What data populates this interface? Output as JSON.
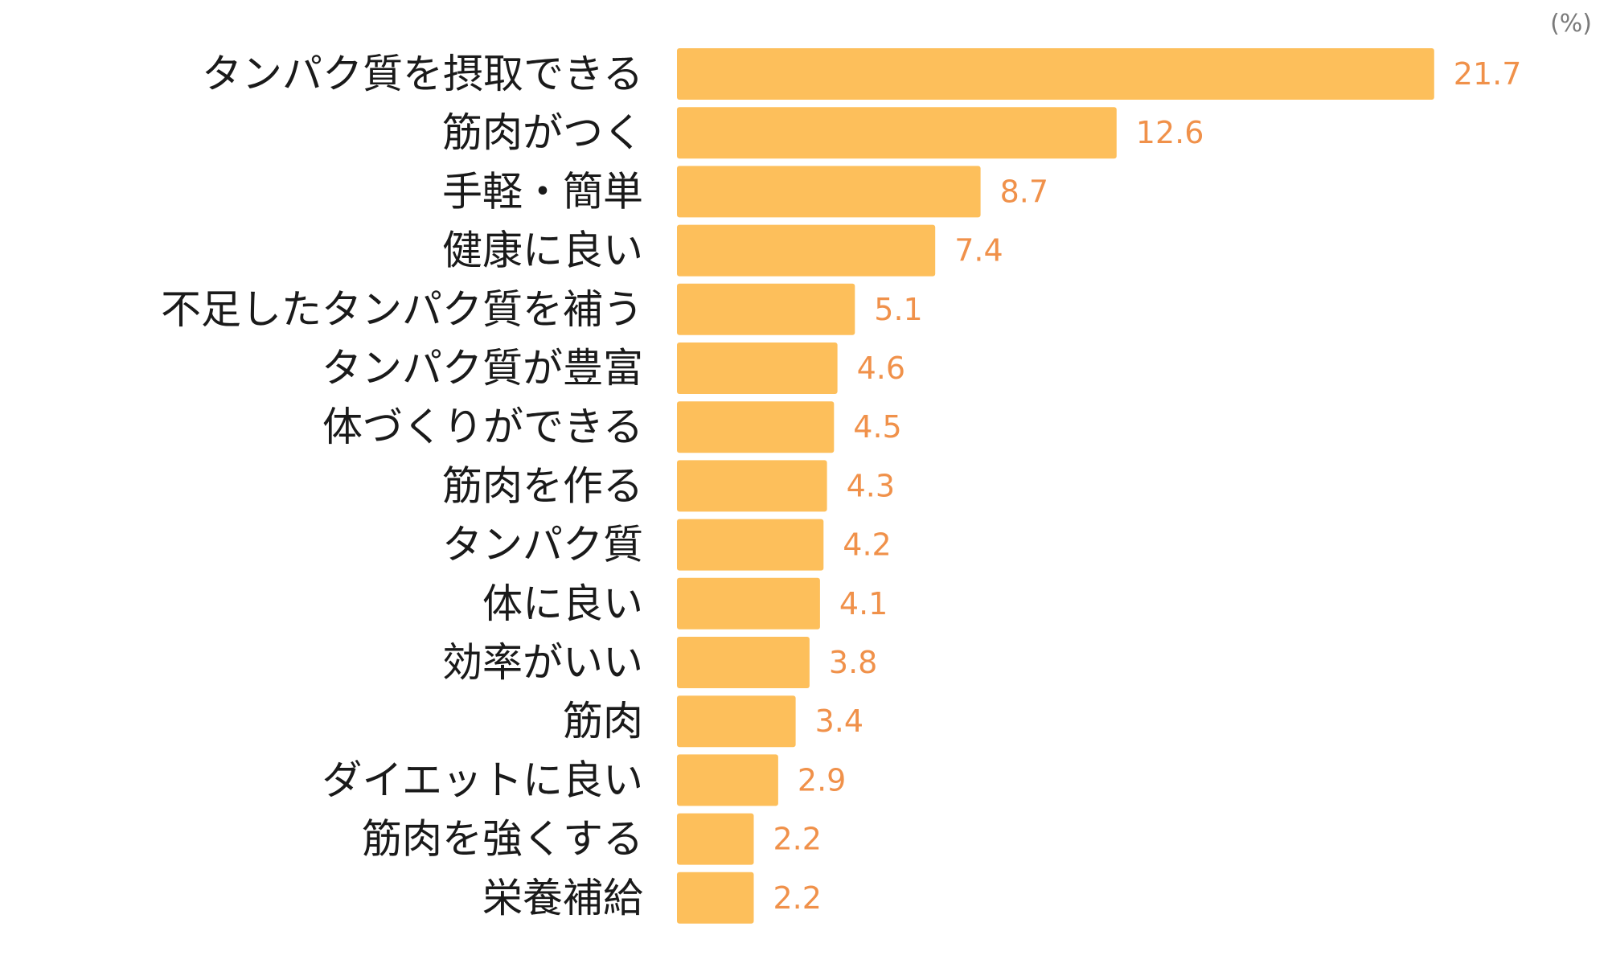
{
  "chart_data": {
    "type": "bar",
    "orientation": "horizontal",
    "unit": "(%)",
    "categories": [
      "タンパク質を摂取できる",
      "筋肉がつく",
      "手軽・簡単",
      "健康に良い",
      "不足したタンパク質を補う",
      "タンパク質が豊富",
      "体づくりができる",
      "筋肉を作る",
      "タンパク質",
      "体に良い",
      "効率がいい",
      "筋肉",
      "ダイエットに良い",
      "筋肉を強くする",
      "栄養補給"
    ],
    "values": [
      21.7,
      12.6,
      8.7,
      7.4,
      5.1,
      4.6,
      4.5,
      4.3,
      4.2,
      4.1,
      3.8,
      3.4,
      2.9,
      2.2,
      2.2
    ],
    "value_labels": [
      "21.7",
      "12.6",
      "8.7",
      "7.4",
      "5.1",
      "4.6",
      "4.5",
      "4.3",
      "4.2",
      "4.1",
      "3.8",
      "3.4",
      "2.9",
      "2.2",
      "2.2"
    ],
    "title": "",
    "xlabel": "",
    "ylabel": "",
    "grid": false,
    "legend": "none",
    "bar_color": "#fdbf5b",
    "value_label_color": "#f0914a",
    "category_label_color": "#1a1a1a"
  }
}
